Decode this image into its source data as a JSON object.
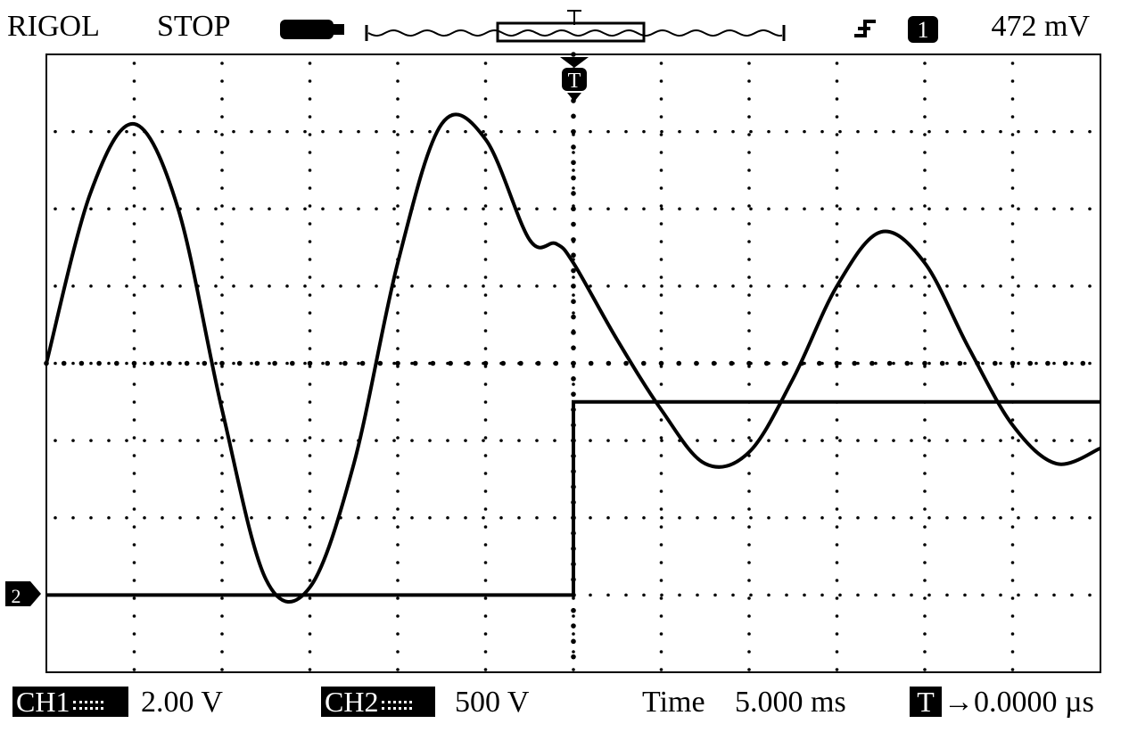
{
  "status_bar": {
    "brand": "RIGOL",
    "run_state": "STOP",
    "trigger_level": "472 mV",
    "trigger_source_label": "1",
    "trigger_marker_label": "T"
  },
  "bottom_bar": {
    "ch1_label": "CH1",
    "ch1_scale": "2.00 V",
    "ch2_label": "CH2",
    "ch2_scale": "500 V",
    "time_label": "Time",
    "time_value": "5.000 ms",
    "trigger_badge": "T",
    "trigger_offset": "→0.0000 µs"
  },
  "markers": {
    "ch2_ground": "2"
  },
  "graticule": {
    "h_divisions": 12,
    "v_divisions": 8
  },
  "chart_data": {
    "type": "line",
    "x_unit": "div",
    "y_unit": "div",
    "xlim": [
      0,
      12
    ],
    "ylim": [
      -4,
      4
    ],
    "series": [
      {
        "name": "CH1",
        "x": [
          0,
          0.5,
          1,
          1.5,
          2,
          2.5,
          3,
          3.5,
          4,
          4.5,
          5,
          5.5,
          5.8,
          6,
          6.5,
          7,
          7.5,
          8,
          8.5,
          9,
          9.5,
          10,
          10.5,
          11,
          11.5,
          12
        ],
        "y": [
          0,
          2.2,
          3.1,
          2.0,
          -0.6,
          -2.8,
          -2.9,
          -1.3,
          1.3,
          3.1,
          2.9,
          1.6,
          1.55,
          1.3,
          0.3,
          -0.6,
          -1.3,
          -1.15,
          -0.2,
          1.0,
          1.7,
          1.3,
          0.2,
          -0.8,
          -1.3,
          -1.1
        ]
      },
      {
        "name": "CH2",
        "x": [
          0,
          6,
          6,
          12
        ],
        "y": [
          -3.0,
          -3.0,
          -0.5,
          -0.5
        ]
      }
    ]
  }
}
